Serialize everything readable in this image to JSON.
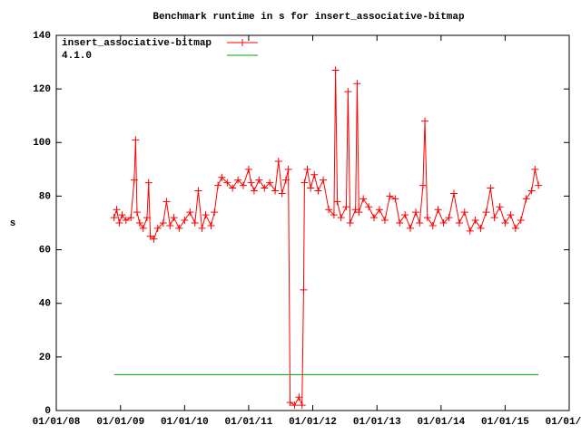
{
  "chart_data": {
    "type": "line",
    "title": "Benchmark runtime in s for insert_associative-bitmap",
    "y_label": "s",
    "xlim": [
      "2008-01-01",
      "2016-01-01"
    ],
    "xticks": [
      {
        "value": "2008-01-01",
        "label": "01/01/08"
      },
      {
        "value": "2009-01-01",
        "label": "01/01/09"
      },
      {
        "value": "2010-01-01",
        "label": "01/01/10"
      },
      {
        "value": "2011-01-01",
        "label": "01/01/11"
      },
      {
        "value": "2012-01-01",
        "label": "01/01/12"
      },
      {
        "value": "2013-01-01",
        "label": "01/01/13"
      },
      {
        "value": "2014-01-01",
        "label": "01/01/14"
      },
      {
        "value": "2015-01-01",
        "label": "01/01/15"
      },
      {
        "value": "2016-01-01",
        "label": "01/01/16"
      }
    ],
    "ylim": [
      0,
      140
    ],
    "yticks": [
      0,
      20,
      40,
      60,
      80,
      100,
      120,
      140
    ],
    "legend": "top-left",
    "series": [
      {
        "name": "insert_associative-bitmap",
        "color": "#ff0000",
        "markers": true,
        "x": [
          "2008-11-25",
          "2008-12-10",
          "2008-12-25",
          "2009-01-10",
          "2009-02-01",
          "2009-03-01",
          "2009-03-20",
          "2009-03-28",
          "2009-04-05",
          "2009-04-20",
          "2009-05-10",
          "2009-06-01",
          "2009-06-10",
          "2009-06-20",
          "2009-07-10",
          "2009-08-01",
          "2009-09-01",
          "2009-09-20",
          "2009-10-10",
          "2009-11-01",
          "2009-12-01",
          "2010-01-01",
          "2010-02-01",
          "2010-03-01",
          "2010-03-20",
          "2010-04-10",
          "2010-05-01",
          "2010-06-01",
          "2010-06-20",
          "2010-07-10",
          "2010-08-01",
          "2010-09-01",
          "2010-10-01",
          "2010-11-01",
          "2010-12-01",
          "2011-01-01",
          "2011-01-15",
          "2011-02-01",
          "2011-03-01",
          "2011-04-01",
          "2011-05-01",
          "2011-06-01",
          "2011-06-20",
          "2011-07-10",
          "2011-08-01",
          "2011-08-15",
          "2011-08-25",
          "2011-09-20",
          "2011-10-15",
          "2011-11-01",
          "2011-11-10",
          "2011-11-15",
          "2011-12-01",
          "2011-12-20",
          "2012-01-10",
          "2012-02-01",
          "2012-03-01",
          "2012-04-01",
          "2012-05-01",
          "2012-05-10",
          "2012-05-20",
          "2012-06-10",
          "2012-07-10",
          "2012-07-20",
          "2012-08-01",
          "2012-09-01",
          "2012-09-10",
          "2012-09-20",
          "2012-10-15",
          "2012-11-15",
          "2012-12-15",
          "2013-01-15",
          "2013-02-15",
          "2013-03-15",
          "2013-04-15",
          "2013-05-10",
          "2013-06-10",
          "2013-07-10",
          "2013-08-10",
          "2013-09-01",
          "2013-09-20",
          "2013-10-01",
          "2013-10-15",
          "2013-11-15",
          "2013-12-15",
          "2014-01-15",
          "2014-02-15",
          "2014-03-15",
          "2014-04-15",
          "2014-05-15",
          "2014-06-15",
          "2014-07-15",
          "2014-08-15",
          "2014-09-15",
          "2014-10-10",
          "2014-11-01",
          "2014-12-01",
          "2015-01-01",
          "2015-02-01",
          "2015-03-01",
          "2015-04-01",
          "2015-05-01",
          "2015-06-01",
          "2015-06-20",
          "2015-07-10"
        ],
        "values": [
          72,
          75,
          70,
          73,
          71,
          72,
          86,
          101,
          74,
          70,
          68,
          72,
          85,
          65,
          64,
          68,
          70,
          78,
          69,
          72,
          68,
          71,
          74,
          70,
          82,
          68,
          73,
          69,
          74,
          84,
          87,
          85,
          83,
          86,
          84,
          90,
          85,
          82,
          86,
          83,
          85,
          82,
          93,
          81,
          86,
          90,
          3,
          2,
          5,
          2,
          45,
          85,
          90,
          83,
          88,
          82,
          86,
          75,
          73,
          127,
          78,
          72,
          76,
          119,
          70,
          75,
          122,
          74,
          79,
          76,
          72,
          75,
          71,
          80,
          79,
          70,
          73,
          68,
          74,
          70,
          84,
          108,
          72,
          69,
          75,
          70,
          72,
          81,
          70,
          74,
          67,
          71,
          68,
          74,
          83,
          72,
          76,
          70,
          73,
          68,
          71,
          79,
          82,
          90,
          84
        ]
      },
      {
        "name": "4.1.0",
        "color": "#00a000",
        "markers": false,
        "x": [
          "2008-11-25",
          "2015-07-10"
        ],
        "values": [
          13.4,
          13.4
        ]
      }
    ]
  }
}
